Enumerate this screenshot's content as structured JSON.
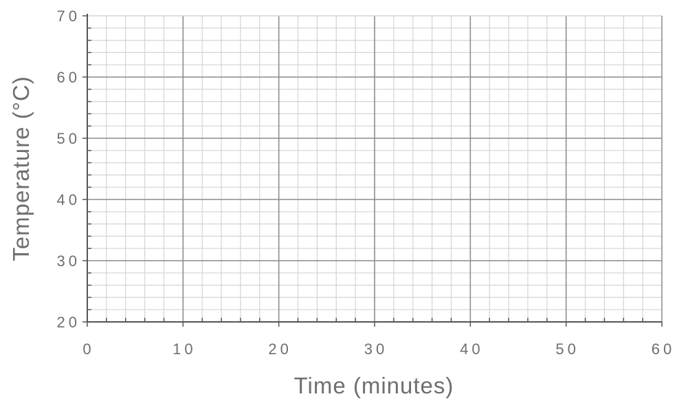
{
  "chart_data": {
    "type": "line",
    "title": "",
    "xlabel": "Time  (minutes)",
    "ylabel": "Temperature  (°C)",
    "xlim": [
      0,
      60
    ],
    "ylim": [
      20,
      70
    ],
    "x_ticks": [
      "0",
      "10",
      "20",
      "30",
      "40",
      "50",
      "60"
    ],
    "y_ticks": [
      "20",
      "30",
      "40",
      "50",
      "60",
      "70"
    ],
    "x_major_step": 10,
    "x_minor_step": 2,
    "y_major_step": 10,
    "y_minor_step": 2,
    "grid": true,
    "series": []
  },
  "colors": {
    "background": "#ffffff",
    "major_grid": "#8c8c8c",
    "minor_grid": "#d4d4d4",
    "axis": "#555555",
    "text": "#6f6f6f"
  }
}
